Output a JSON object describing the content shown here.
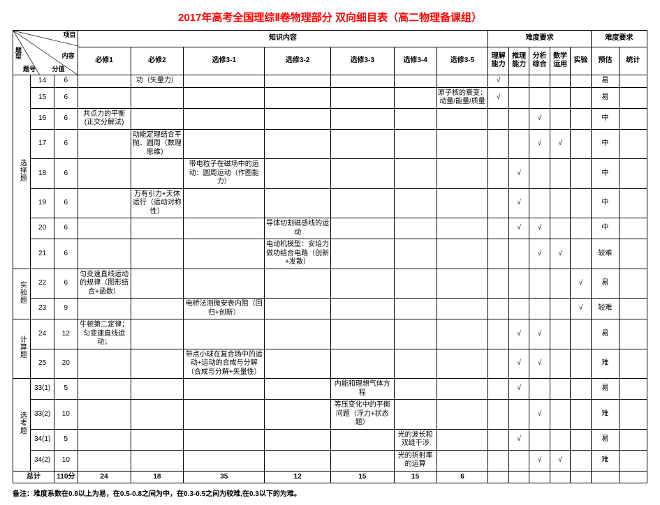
{
  "title": "2017年高考全国理综Ⅱ卷物理部分 双向细目表（高二物理备课组）",
  "header": {
    "knowledge": "知识内容",
    "difficulty": "难度要求",
    "difficulty2": "难度要求",
    "diag_txing": "题型",
    "diag_xm": "项目",
    "diag_th": "题号",
    "diag_fz": "分值",
    "diag_nr": "内容",
    "cols_knowledge": [
      "必修1",
      "必修2",
      "选修3-1",
      "选修3-2",
      "选修3-3",
      "选修3-4",
      "选修3-5"
    ],
    "cols_ability": [
      "理解能力",
      "推理能力",
      "分析综合",
      "数学运用",
      "实验"
    ],
    "cols_diff": [
      "预估",
      "统计"
    ]
  },
  "groups": [
    {
      "name": "选择题",
      "rows": [
        {
          "th": "14",
          "fz": "6",
          "k": [
            "",
            "功（矢量力）",
            "",
            "",
            "",
            "",
            ""
          ],
          "a": [
            "√",
            "",
            "",
            "",
            ""
          ],
          "d": [
            "易",
            ""
          ]
        },
        {
          "th": "15",
          "fz": "6",
          "k": [
            "",
            "",
            "",
            "",
            "",
            "",
            "原子核的衰变：动量/能量/质量"
          ],
          "a": [
            "√",
            "",
            "",
            "",
            ""
          ],
          "d": [
            "易",
            ""
          ]
        },
        {
          "th": "16",
          "fz": "6",
          "k": [
            "共点力的平衡(正交分解法)",
            "",
            "",
            "",
            "",
            "",
            ""
          ],
          "a": [
            "",
            "",
            "√",
            "",
            ""
          ],
          "d": [
            "中",
            ""
          ]
        },
        {
          "th": "17",
          "fz": "6",
          "k": [
            "",
            "动能定理结合平抛、圆周（数理思维）",
            "",
            "",
            "",
            "",
            ""
          ],
          "a": [
            "",
            "",
            "√",
            "√",
            ""
          ],
          "d": [
            "中",
            ""
          ]
        },
        {
          "th": "18",
          "fz": "6",
          "k": [
            "",
            "",
            "带电粒子在磁场中的运动：圆周运动（作图能力）",
            "",
            "",
            "",
            ""
          ],
          "a": [
            "",
            "√",
            "",
            "",
            ""
          ],
          "d": [
            "中",
            ""
          ]
        },
        {
          "th": "19",
          "fz": "6",
          "k": [
            "",
            "万有引力+天体运行（运动对称性）",
            "",
            "",
            "",
            "",
            ""
          ],
          "a": [
            "",
            "√",
            "",
            "",
            ""
          ],
          "d": [
            "中",
            ""
          ]
        },
        {
          "th": "20",
          "fz": "6",
          "k": [
            "",
            "",
            "",
            "导体切割磁感线的运动",
            "",
            "",
            ""
          ],
          "a": [
            "",
            "√",
            "√",
            "",
            ""
          ],
          "d": [
            "中",
            ""
          ]
        },
        {
          "th": "21",
          "fz": "6",
          "k": [
            "",
            "",
            "",
            "电动机模型：安培力做功结合电路（创新+发散）",
            "",
            "",
            ""
          ],
          "a": [
            "",
            "",
            "√",
            "√",
            ""
          ],
          "d": [
            "较难",
            ""
          ]
        }
      ]
    },
    {
      "name": "实验题",
      "rows": [
        {
          "th": "22",
          "fz": "6",
          "k": [
            "匀变速直线运动的规律（图形结合+函数）",
            "",
            "",
            "",
            "",
            "",
            ""
          ],
          "a": [
            "",
            "",
            "",
            "",
            "√"
          ],
          "d": [
            "易",
            ""
          ]
        },
        {
          "th": "23",
          "fz": "9",
          "k": [
            "",
            "",
            "电桥法测微安表内阻（回归+创新）",
            "",
            "",
            "",
            ""
          ],
          "a": [
            "",
            "",
            "",
            "",
            "√"
          ],
          "d": [
            "较难",
            ""
          ]
        }
      ]
    },
    {
      "name": "计算题",
      "rows": [
        {
          "th": "24",
          "fz": "12",
          "k": [
            "牛顿第二定律；匀变速直线运动；",
            "",
            "",
            "",
            "",
            "",
            ""
          ],
          "a": [
            "",
            "√",
            "√",
            "",
            ""
          ],
          "d": [
            "易",
            ""
          ]
        },
        {
          "th": "25",
          "fz": "20",
          "k": [
            "",
            "",
            "带点小球在复合场中的运动+运动的合成与分解（合成与分解+矢量性）",
            "",
            "",
            "",
            ""
          ],
          "a": [
            "",
            "√",
            "√",
            "",
            ""
          ],
          "d": [
            "难",
            ""
          ]
        }
      ]
    },
    {
      "name": "选考题",
      "rows": [
        {
          "th": "33(1)",
          "fz": "5",
          "k": [
            "",
            "",
            "",
            "",
            "内能和理想气体方程",
            "",
            ""
          ],
          "a": [
            "",
            "√",
            "",
            "",
            ""
          ],
          "d": [
            "易",
            ""
          ]
        },
        {
          "th": "33(2)",
          "fz": "10",
          "k": [
            "",
            "",
            "",
            "",
            "等压变化中的平衡问题（浮力+状态题）",
            "",
            ""
          ],
          "a": [
            "",
            "",
            "√",
            "",
            ""
          ],
          "d": [
            "难",
            ""
          ]
        },
        {
          "th": "34(1)",
          "fz": "5",
          "k": [
            "",
            "",
            "",
            "",
            "",
            "光的波长和双缝干涉",
            ""
          ],
          "a": [
            "",
            "√",
            "",
            "",
            ""
          ],
          "d": [
            "易",
            ""
          ]
        },
        {
          "th": "34(2)",
          "fz": "10",
          "k": [
            "",
            "",
            "",
            "",
            "",
            "光的折射率的运算",
            ""
          ],
          "a": [
            "",
            "",
            "√",
            "√",
            ""
          ],
          "d": [
            "难",
            ""
          ]
        }
      ]
    }
  ],
  "totals": {
    "label": "总计",
    "fz": "110分",
    "k": [
      "24",
      "18",
      "35",
      "12",
      "15",
      "15",
      "6"
    ],
    "a": [
      "",
      "",
      "",
      "",
      ""
    ],
    "d": [
      "",
      ""
    ]
  },
  "footnote": "备注：难度系数在0.8以上为易，在0.5-0.8之间为中，在0.3-0.5之间为较难,在0.3以下的为难。"
}
